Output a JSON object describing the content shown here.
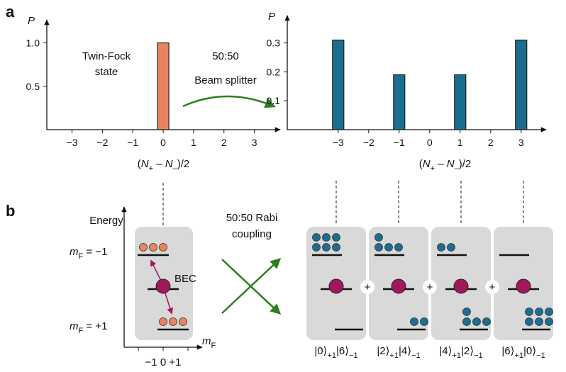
{
  "panel_labels": [
    "a",
    "b"
  ],
  "chart_data": [
    {
      "type": "bar",
      "y_label": "P",
      "x_label": {
        "open": "(",
        "n1": "N",
        "sub1": "+",
        "mid": " – ",
        "n2": "N",
        "sub2": "–",
        "close": ")/2"
      },
      "x": [
        0
      ],
      "values": [
        1.0
      ],
      "color": "#e8845f",
      "xlim": [
        -3.83,
        3.85
      ],
      "ylim": [
        0,
        1.2
      ],
      "xticks": [
        {
          "value": -3,
          "label": "−3"
        },
        {
          "value": -2,
          "label": "−2"
        },
        {
          "value": -1,
          "label": "−1"
        },
        0,
        1,
        2,
        3
      ],
      "yticks": [
        0.5,
        {
          "value": 1,
          "label": "1.0"
        }
      ],
      "annotations": [
        "Twin-Fock",
        "state"
      ]
    },
    {
      "type": "bar",
      "y_label": "P",
      "x_label": {
        "open": "(",
        "n1": "N",
        "sub1": "+",
        "mid": " – ",
        "n2": "N",
        "sub2": "–",
        "close": ")/2"
      },
      "x": [
        -3,
        -1,
        1,
        3
      ],
      "values": [
        0.31,
        0.19,
        0.19,
        0.31
      ],
      "color": "#1b6e8f",
      "xlim": [
        -4.67,
        3.82
      ],
      "ylim": [
        0,
        0.375
      ],
      "xticks": [
        {
          "value": -3,
          "label": "−3"
        },
        {
          "value": -2,
          "label": "−2"
        },
        {
          "value": -1,
          "label": "−1"
        },
        0,
        1,
        2,
        3
      ],
      "yticks": [
        0.1,
        0.2,
        0.3
      ]
    }
  ],
  "beam_splitter_label": [
    "50:50",
    "Beam splitter"
  ],
  "diagram": {
    "energy_label": "Energy",
    "mf_axis": {
      "m": "m",
      "sub": "F"
    },
    "mf_axis_ticks": "−1 0 +1",
    "levels": [
      {
        "m": "m",
        "sub": "F",
        "eq": " = −1"
      },
      {
        "m": "m",
        "sub": "F",
        "eq": " = +1"
      }
    ],
    "bec_label": "BEC",
    "rabi_label": [
      "50:50 Rabi",
      "coupling"
    ],
    "plus": [
      "+",
      "+",
      "+"
    ],
    "kets": [
      {
        "a": "|0⟩",
        "a_sub": "+1",
        "b": "|6⟩",
        "b_sub": "−1"
      },
      {
        "a": "|2⟩",
        "a_sub": "+1",
        "b": "|4⟩",
        "b_sub": "−1"
      },
      {
        "a": "|4⟩",
        "a_sub": "+1",
        "b": "|2⟩",
        "b_sub": "−1"
      },
      {
        "a": "|6⟩",
        "a_sub": "+1",
        "b": "|0⟩",
        "b_sub": "−1"
      }
    ]
  }
}
